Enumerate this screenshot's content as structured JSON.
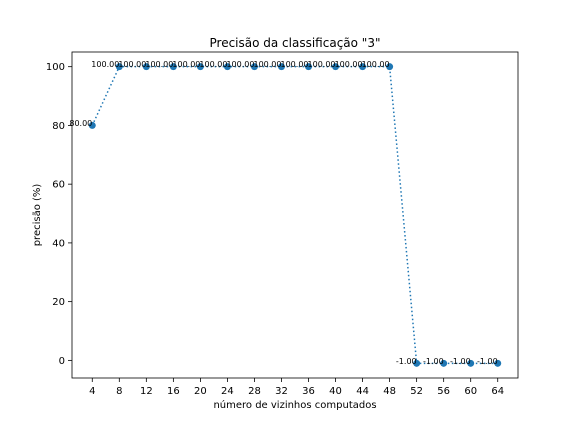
{
  "chart_data": {
    "type": "line",
    "title": "Precisão da classificação \"3\"",
    "xlabel": "número de vizinhos computados",
    "ylabel": "precisão (%)",
    "x": [
      4,
      8,
      12,
      16,
      20,
      24,
      28,
      32,
      36,
      40,
      44,
      48,
      52,
      56,
      60,
      64
    ],
    "series": [
      {
        "values": [
          80,
          100,
          100,
          100,
          100,
          100,
          100,
          100,
          100,
          100,
          100,
          100,
          -1,
          -1,
          -1,
          -1
        ],
        "labels": [
          "80.00",
          "100.00",
          "100.00",
          "100.00",
          "100.00",
          "100.00",
          "100.00",
          "100.00",
          "100.00",
          "100.00",
          "100.00",
          "100.00",
          "-1.00",
          "-1.00",
          "-1.00",
          "-1.00"
        ],
        "color": "#1f77b4",
        "line_style": "dotted",
        "marker": "circle"
      }
    ],
    "xticks": [
      4,
      8,
      12,
      16,
      20,
      24,
      28,
      32,
      36,
      40,
      44,
      48,
      52,
      56,
      60,
      64
    ],
    "yticks": [
      0,
      20,
      40,
      60,
      80,
      100
    ],
    "xlim": [
      1,
      67
    ],
    "ylim": [
      -6,
      105
    ],
    "grid": false,
    "legend": "none"
  }
}
